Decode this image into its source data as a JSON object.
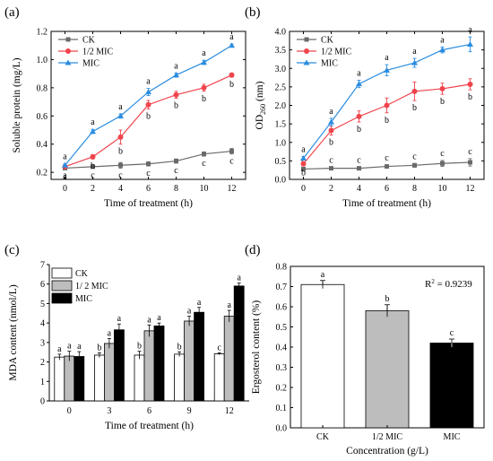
{
  "colors": {
    "ck": "#6a6a6a",
    "half_mic": "#f0444c",
    "mic": "#2b8de0",
    "bar_ck": "#ffffff",
    "bar_half": "#bdbdbd",
    "bar_mic": "#000000"
  },
  "chart_data": [
    {
      "panel": "(a)",
      "type": "line",
      "xlabel": "Time of treatment (h)",
      "ylabel": "Soluble protein (mg/L)",
      "x": [
        0,
        2,
        4,
        6,
        8,
        10,
        12
      ],
      "xlim": [
        -1,
        13
      ],
      "ylim": [
        0.15,
        1.2
      ],
      "xticks": [
        "0",
        "2",
        "4",
        "6",
        "8",
        "10",
        "12"
      ],
      "yticks": [
        "0.2",
        "0.4",
        "0.6",
        "0.8",
        "1.0",
        "1.2"
      ],
      "legend": "top-left",
      "series": [
        {
          "name": "CK",
          "color": "#6a6a6a",
          "marker": "square",
          "label_side": "below",
          "values": [
            0.23,
            0.24,
            0.25,
            0.26,
            0.28,
            0.33,
            0.35
          ],
          "errors": [
            0.01,
            0.01,
            0.02,
            0.015,
            0.015,
            0.015,
            0.02
          ],
          "letters": [
            "a",
            "c",
            "c",
            "c",
            "c",
            "c",
            "c"
          ]
        },
        {
          "name": "1/2 MIC",
          "color": "#f0444c",
          "marker": "circle",
          "label_side": "below",
          "values": [
            0.24,
            0.31,
            0.45,
            0.68,
            0.75,
            0.8,
            0.89
          ],
          "errors": [
            0.01,
            0.015,
            0.05,
            0.03,
            0.025,
            0.025,
            0.015
          ],
          "letters": [
            "a",
            "b",
            "b",
            "b",
            "b",
            "b",
            "b"
          ]
        },
        {
          "name": "MIC",
          "color": "#2b8de0",
          "marker": "triangle",
          "label_side": "above",
          "values": [
            0.25,
            0.49,
            0.6,
            0.77,
            0.89,
            0.98,
            1.1
          ],
          "errors": [
            0.01,
            0.015,
            0.015,
            0.025,
            0.015,
            0.015,
            0.01
          ],
          "letters": [
            "a",
            "a",
            "a",
            "a",
            "a",
            "a",
            "a"
          ]
        }
      ]
    },
    {
      "panel": "(b)",
      "type": "line",
      "xlabel": "Time of treatment (h)",
      "ylabel_main": "OD",
      "ylabel_sub": "260",
      "ylabel_tail": " (nm)",
      "x": [
        0,
        2,
        4,
        6,
        8,
        10,
        12
      ],
      "xlim": [
        -1,
        13
      ],
      "ylim": [
        0.0,
        4.0
      ],
      "xticks": [
        "0",
        "2",
        "4",
        "6",
        "8",
        "10",
        "12"
      ],
      "yticks": [
        "0.0",
        "0.5",
        "1.0",
        "1.5",
        "2.0",
        "2.5",
        "3.0",
        "3.5",
        "4.0"
      ],
      "legend": "top-left",
      "series": [
        {
          "name": "CK",
          "color": "#6a6a6a",
          "marker": "square",
          "label_side": "above",
          "values": [
            0.28,
            0.3,
            0.3,
            0.35,
            0.38,
            0.43,
            0.46
          ],
          "errors": [
            0.02,
            0.03,
            0.03,
            0.04,
            0.05,
            0.08,
            0.1
          ],
          "letters": [
            "c",
            "c",
            "c",
            "c",
            "c",
            "c",
            "c"
          ]
        },
        {
          "name": "1/2 MIC",
          "color": "#f0444c",
          "marker": "circle",
          "label_side": "below",
          "values": [
            0.42,
            1.32,
            1.7,
            2.0,
            2.38,
            2.45,
            2.57
          ],
          "errors": [
            0.05,
            0.12,
            0.15,
            0.2,
            0.25,
            0.15,
            0.15
          ],
          "letters": [
            "b",
            "b",
            "b",
            "b",
            "b",
            "b",
            "b"
          ]
        },
        {
          "name": "MIC",
          "color": "#2b8de0",
          "marker": "triangle",
          "label_side": "above",
          "values": [
            0.57,
            1.55,
            2.58,
            2.95,
            3.15,
            3.5,
            3.65
          ],
          "errors": [
            0.05,
            0.1,
            0.1,
            0.15,
            0.12,
            0.08,
            0.2
          ],
          "letters": [
            "a",
            "a",
            "a",
            "a",
            "a",
            "a",
            "a"
          ]
        }
      ]
    },
    {
      "panel": "(c)",
      "type": "bar",
      "xlabel": "Time of treatment (h)",
      "ylabel": "MDA content (nmol/L)",
      "categories": [
        "0",
        "3",
        "6",
        "9",
        "12"
      ],
      "ylim": [
        0,
        7
      ],
      "yticks": [
        "0",
        "1",
        "2",
        "3",
        "4",
        "5",
        "6",
        "7"
      ],
      "legend": "top-left",
      "series": [
        {
          "name": "CK",
          "fill": "#ffffff",
          "values": [
            2.25,
            2.35,
            2.35,
            2.4,
            2.42
          ],
          "errors": [
            0.15,
            0.12,
            0.2,
            0.12,
            0.05
          ],
          "letters": [
            "a",
            "b",
            "b",
            "b",
            "c"
          ]
        },
        {
          "name": "1/ 2 MIC",
          "fill": "#bdbdbd",
          "values": [
            2.3,
            2.95,
            3.6,
            4.1,
            4.35
          ],
          "errors": [
            0.25,
            0.25,
            0.3,
            0.25,
            0.3
          ],
          "letters": [
            "a",
            "a",
            "a",
            "a",
            "a"
          ]
        },
        {
          "name": "MIC",
          "fill": "#000000",
          "values": [
            2.28,
            3.65,
            3.85,
            4.55,
            5.9
          ],
          "errors": [
            0.25,
            0.3,
            0.15,
            0.25,
            0.15
          ],
          "letters": [
            "a",
            "a",
            "a",
            "a",
            "a"
          ]
        }
      ]
    },
    {
      "panel": "(d)",
      "type": "bar",
      "xlabel": "Concentration (g/L)",
      "ylabel": "Ergosterol content (%)",
      "categories": [
        "CK",
        "1/2 MIC",
        "MIC"
      ],
      "ylim": [
        0,
        0.8
      ],
      "yticks": [
        "0.0",
        "0.1",
        "0.2",
        "0.3",
        "0.4",
        "0.5",
        "0.6",
        "0.7",
        "0.8"
      ],
      "values": [
        0.71,
        0.58,
        0.42
      ],
      "errors": [
        0.02,
        0.03,
        0.02
      ],
      "fills": [
        "#ffffff",
        "#bdbdbd",
        "#000000"
      ],
      "letters": [
        "a",
        "b",
        "c"
      ],
      "annotation_main": "R",
      "annotation_sup": "2",
      "annotation_tail": " = 0.9239"
    }
  ]
}
